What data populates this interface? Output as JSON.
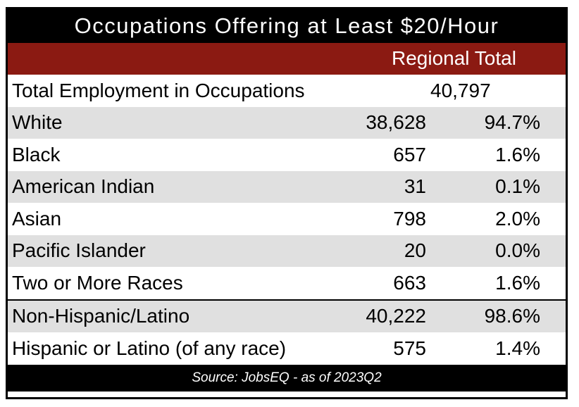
{
  "title": "Occupations Offering at Least $20/Hour",
  "subheader": "Regional Total",
  "total_row": {
    "label": "Total Employment in Occupations",
    "value": "40,797"
  },
  "rows": [
    {
      "label": "White",
      "count": "38,628",
      "pct": "94.7%"
    },
    {
      "label": "Black",
      "count": "657",
      "pct": "1.6%"
    },
    {
      "label": "American Indian",
      "count": "31",
      "pct": "0.1%"
    },
    {
      "label": "Asian",
      "count": "798",
      "pct": "2.0%"
    },
    {
      "label": "Pacific Islander",
      "count": "20",
      "pct": "0.0%"
    },
    {
      "label": "Two or More Races",
      "count": "663",
      "pct": "1.6%"
    },
    {
      "label": "Non-Hispanic/Latino",
      "count": "40,222",
      "pct": "98.6%"
    },
    {
      "label": "Hispanic or Latino (of any race)",
      "count": "575",
      "pct": "1.4%"
    }
  ],
  "source": "Source: JobsEQ - as of 2023Q2",
  "colors": {
    "title_bg": "#000000",
    "subheader_bg": "#8b1a12",
    "stripe": "#e0e0e0"
  }
}
